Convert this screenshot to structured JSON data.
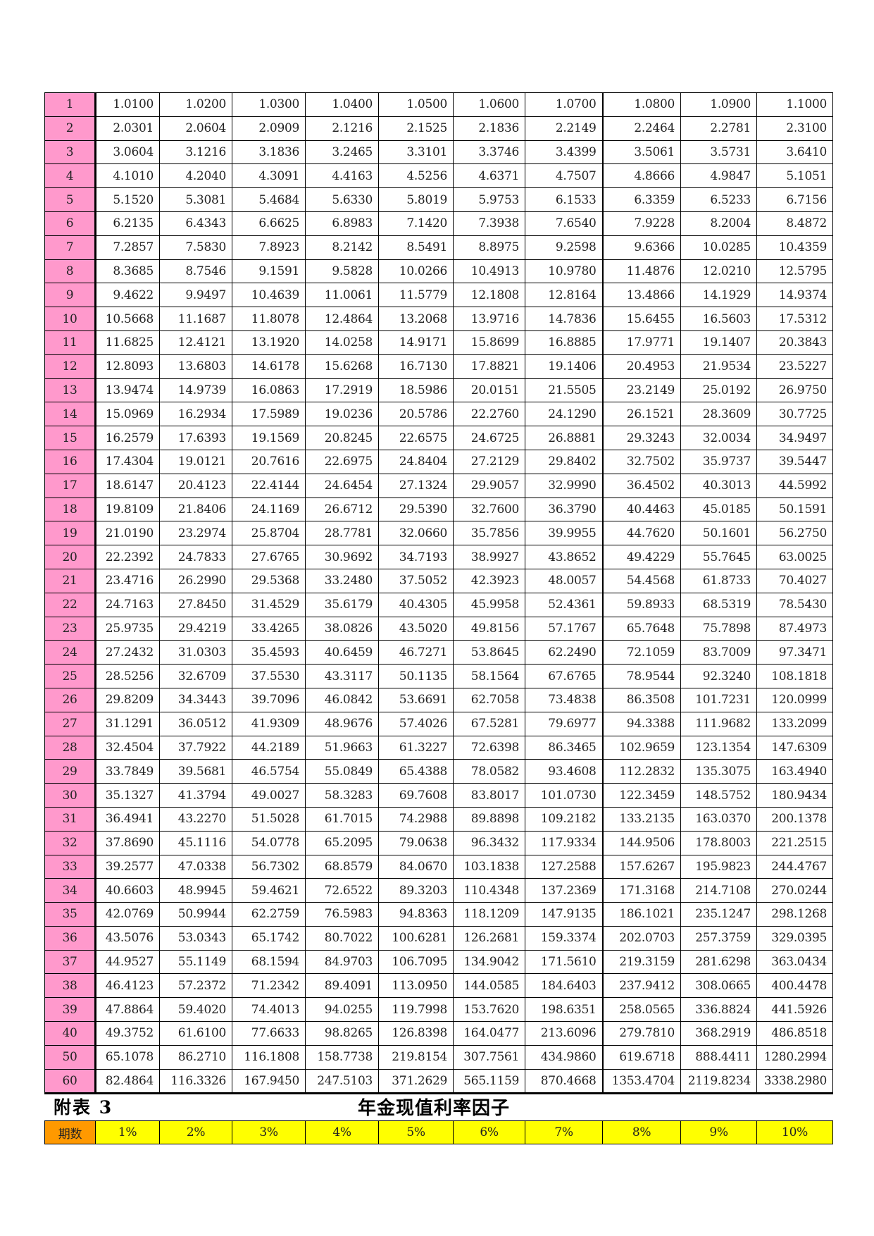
{
  "table": {
    "columns": [
      "1%",
      "2%",
      "3%",
      "4%",
      "5%",
      "6%",
      "7%",
      "8%",
      "9%",
      "10%"
    ],
    "rows": [
      {
        "period": "1",
        "values": [
          "1.0100",
          "1.0200",
          "1.0300",
          "1.0400",
          "1.0500",
          "1.0600",
          "1.0700",
          "1.0800",
          "1.0900",
          "1.1000"
        ]
      },
      {
        "period": "2",
        "values": [
          "2.0301",
          "2.0604",
          "2.0909",
          "2.1216",
          "2.1525",
          "2.1836",
          "2.2149",
          "2.2464",
          "2.2781",
          "2.3100"
        ]
      },
      {
        "period": "3",
        "values": [
          "3.0604",
          "3.1216",
          "3.1836",
          "3.2465",
          "3.3101",
          "3.3746",
          "3.4399",
          "3.5061",
          "3.5731",
          "3.6410"
        ]
      },
      {
        "period": "4",
        "values": [
          "4.1010",
          "4.2040",
          "4.3091",
          "4.4163",
          "4.5256",
          "4.6371",
          "4.7507",
          "4.8666",
          "4.9847",
          "5.1051"
        ]
      },
      {
        "period": "5",
        "values": [
          "5.1520",
          "5.3081",
          "5.4684",
          "5.6330",
          "5.8019",
          "5.9753",
          "6.1533",
          "6.3359",
          "6.5233",
          "6.7156"
        ]
      },
      {
        "period": "6",
        "values": [
          "6.2135",
          "6.4343",
          "6.6625",
          "6.8983",
          "7.1420",
          "7.3938",
          "7.6540",
          "7.9228",
          "8.2004",
          "8.4872"
        ]
      },
      {
        "period": "7",
        "values": [
          "7.2857",
          "7.5830",
          "7.8923",
          "8.2142",
          "8.5491",
          "8.8975",
          "9.2598",
          "9.6366",
          "10.0285",
          "10.4359"
        ]
      },
      {
        "period": "8",
        "values": [
          "8.3685",
          "8.7546",
          "9.1591",
          "9.5828",
          "10.0266",
          "10.4913",
          "10.9780",
          "11.4876",
          "12.0210",
          "12.5795"
        ]
      },
      {
        "period": "9",
        "values": [
          "9.4622",
          "9.9497",
          "10.4639",
          "11.0061",
          "11.5779",
          "12.1808",
          "12.8164",
          "13.4866",
          "14.1929",
          "14.9374"
        ]
      },
      {
        "period": "10",
        "values": [
          "10.5668",
          "11.1687",
          "11.8078",
          "12.4864",
          "13.2068",
          "13.9716",
          "14.7836",
          "15.6455",
          "16.5603",
          "17.5312"
        ]
      },
      {
        "period": "11",
        "values": [
          "11.6825",
          "12.4121",
          "13.1920",
          "14.0258",
          "14.9171",
          "15.8699",
          "16.8885",
          "17.9771",
          "19.1407",
          "20.3843"
        ]
      },
      {
        "period": "12",
        "values": [
          "12.8093",
          "13.6803",
          "14.6178",
          "15.6268",
          "16.7130",
          "17.8821",
          "19.1406",
          "20.4953",
          "21.9534",
          "23.5227"
        ]
      },
      {
        "period": "13",
        "values": [
          "13.9474",
          "14.9739",
          "16.0863",
          "17.2919",
          "18.5986",
          "20.0151",
          "21.5505",
          "23.2149",
          "25.0192",
          "26.9750"
        ]
      },
      {
        "period": "14",
        "values": [
          "15.0969",
          "16.2934",
          "17.5989",
          "19.0236",
          "20.5786",
          "22.2760",
          "24.1290",
          "26.1521",
          "28.3609",
          "30.7725"
        ]
      },
      {
        "period": "15",
        "values": [
          "16.2579",
          "17.6393",
          "19.1569",
          "20.8245",
          "22.6575",
          "24.6725",
          "26.8881",
          "29.3243",
          "32.0034",
          "34.9497"
        ]
      },
      {
        "period": "16",
        "values": [
          "17.4304",
          "19.0121",
          "20.7616",
          "22.6975",
          "24.8404",
          "27.2129",
          "29.8402",
          "32.7502",
          "35.9737",
          "39.5447"
        ]
      },
      {
        "period": "17",
        "values": [
          "18.6147",
          "20.4123",
          "22.4144",
          "24.6454",
          "27.1324",
          "29.9057",
          "32.9990",
          "36.4502",
          "40.3013",
          "44.5992"
        ]
      },
      {
        "period": "18",
        "values": [
          "19.8109",
          "21.8406",
          "24.1169",
          "26.6712",
          "29.5390",
          "32.7600",
          "36.3790",
          "40.4463",
          "45.0185",
          "50.1591"
        ]
      },
      {
        "period": "19",
        "values": [
          "21.0190",
          "23.2974",
          "25.8704",
          "28.7781",
          "32.0660",
          "35.7856",
          "39.9955",
          "44.7620",
          "50.1601",
          "56.2750"
        ]
      },
      {
        "period": "20",
        "values": [
          "22.2392",
          "24.7833",
          "27.6765",
          "30.9692",
          "34.7193",
          "38.9927",
          "43.8652",
          "49.4229",
          "55.7645",
          "63.0025"
        ]
      },
      {
        "period": "21",
        "values": [
          "23.4716",
          "26.2990",
          "29.5368",
          "33.2480",
          "37.5052",
          "42.3923",
          "48.0057",
          "54.4568",
          "61.8733",
          "70.4027"
        ]
      },
      {
        "period": "22",
        "values": [
          "24.7163",
          "27.8450",
          "31.4529",
          "35.6179",
          "40.4305",
          "45.9958",
          "52.4361",
          "59.8933",
          "68.5319",
          "78.5430"
        ]
      },
      {
        "period": "23",
        "values": [
          "25.9735",
          "29.4219",
          "33.4265",
          "38.0826",
          "43.5020",
          "49.8156",
          "57.1767",
          "65.7648",
          "75.7898",
          "87.4973"
        ]
      },
      {
        "period": "24",
        "values": [
          "27.2432",
          "31.0303",
          "35.4593",
          "40.6459",
          "46.7271",
          "53.8645",
          "62.2490",
          "72.1059",
          "83.7009",
          "97.3471"
        ]
      },
      {
        "period": "25",
        "values": [
          "28.5256",
          "32.6709",
          "37.5530",
          "43.3117",
          "50.1135",
          "58.1564",
          "67.6765",
          "78.9544",
          "92.3240",
          "108.1818"
        ]
      },
      {
        "period": "26",
        "values": [
          "29.8209",
          "34.3443",
          "39.7096",
          "46.0842",
          "53.6691",
          "62.7058",
          "73.4838",
          "86.3508",
          "101.7231",
          "120.0999"
        ]
      },
      {
        "period": "27",
        "values": [
          "31.1291",
          "36.0512",
          "41.9309",
          "48.9676",
          "57.4026",
          "67.5281",
          "79.6977",
          "94.3388",
          "111.9682",
          "133.2099"
        ]
      },
      {
        "period": "28",
        "values": [
          "32.4504",
          "37.7922",
          "44.2189",
          "51.9663",
          "61.3227",
          "72.6398",
          "86.3465",
          "102.9659",
          "123.1354",
          "147.6309"
        ]
      },
      {
        "period": "29",
        "values": [
          "33.7849",
          "39.5681",
          "46.5754",
          "55.0849",
          "65.4388",
          "78.0582",
          "93.4608",
          "112.2832",
          "135.3075",
          "163.4940"
        ]
      },
      {
        "period": "30",
        "values": [
          "35.1327",
          "41.3794",
          "49.0027",
          "58.3283",
          "69.7608",
          "83.8017",
          "101.0730",
          "122.3459",
          "148.5752",
          "180.9434"
        ]
      },
      {
        "period": "31",
        "values": [
          "36.4941",
          "43.2270",
          "51.5028",
          "61.7015",
          "74.2988",
          "89.8898",
          "109.2182",
          "133.2135",
          "163.0370",
          "200.1378"
        ]
      },
      {
        "period": "32",
        "values": [
          "37.8690",
          "45.1116",
          "54.0778",
          "65.2095",
          "79.0638",
          "96.3432",
          "117.9334",
          "144.9506",
          "178.8003",
          "221.2515"
        ]
      },
      {
        "period": "33",
        "values": [
          "39.2577",
          "47.0338",
          "56.7302",
          "68.8579",
          "84.0670",
          "103.1838",
          "127.2588",
          "157.6267",
          "195.9823",
          "244.4767"
        ]
      },
      {
        "period": "34",
        "values": [
          "40.6603",
          "48.9945",
          "59.4621",
          "72.6522",
          "89.3203",
          "110.4348",
          "137.2369",
          "171.3168",
          "214.7108",
          "270.0244"
        ]
      },
      {
        "period": "35",
        "values": [
          "42.0769",
          "50.9944",
          "62.2759",
          "76.5983",
          "94.8363",
          "118.1209",
          "147.9135",
          "186.1021",
          "235.1247",
          "298.1268"
        ]
      },
      {
        "period": "36",
        "values": [
          "43.5076",
          "53.0343",
          "65.1742",
          "80.7022",
          "100.6281",
          "126.2681",
          "159.3374",
          "202.0703",
          "257.3759",
          "329.0395"
        ]
      },
      {
        "period": "37",
        "values": [
          "44.9527",
          "55.1149",
          "68.1594",
          "84.9703",
          "106.7095",
          "134.9042",
          "171.5610",
          "219.3159",
          "281.6298",
          "363.0434"
        ]
      },
      {
        "period": "38",
        "values": [
          "46.4123",
          "57.2372",
          "71.2342",
          "89.4091",
          "113.0950",
          "144.0585",
          "184.6403",
          "237.9412",
          "308.0665",
          "400.4478"
        ]
      },
      {
        "period": "39",
        "values": [
          "47.8864",
          "59.4020",
          "74.4013",
          "94.0255",
          "119.7998",
          "153.7620",
          "198.6351",
          "258.0565",
          "336.8824",
          "441.5926"
        ]
      },
      {
        "period": "40",
        "values": [
          "49.3752",
          "61.6100",
          "77.6633",
          "98.8265",
          "126.8398",
          "164.0477",
          "213.6096",
          "279.7810",
          "368.2919",
          "486.8518"
        ]
      },
      {
        "period": "50",
        "values": [
          "65.1078",
          "86.2710",
          "116.1808",
          "158.7738",
          "219.8154",
          "307.7561",
          "434.9860",
          "619.6718",
          "888.4411",
          "1280.2994"
        ]
      },
      {
        "period": "60",
        "values": [
          "82.4864",
          "116.3326",
          "167.9450",
          "247.5103",
          "371.2629",
          "565.1159",
          "870.4668",
          "1353.4704",
          "2119.8234",
          "3338.2980"
        ]
      }
    ]
  },
  "next_section": {
    "label": "附表 3",
    "title": "年金现值利率因子",
    "period_header": "期数",
    "columns": [
      "1%",
      "2%",
      "3%",
      "4%",
      "5%",
      "6%",
      "7%",
      "8%",
      "9%",
      "10%"
    ]
  },
  "colors": {
    "period_cell": "#ff99cc",
    "header_period_cell": "#ff9900",
    "header_rate_cell": "#ffff00"
  }
}
